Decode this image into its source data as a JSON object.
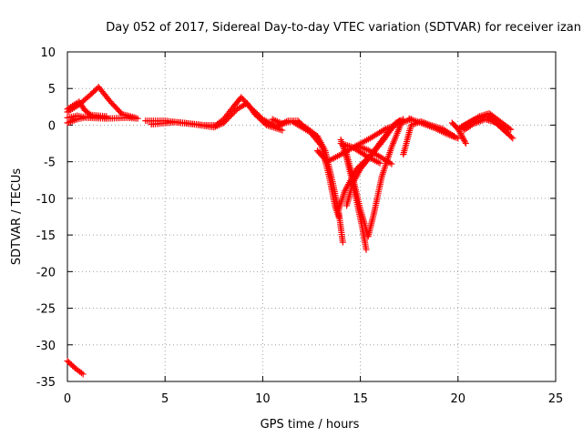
{
  "chart_data": {
    "type": "scatter",
    "title": "Day 052 of 2017, Sidereal Day-to-day VTEC variation (SDTVAR) for receiver izan",
    "xlabel": "GPS time / hours",
    "ylabel": "SDTVAR / TECUs",
    "xlim": [
      0,
      25
    ],
    "ylim": [
      -35,
      10
    ],
    "xticks": [
      0,
      5,
      10,
      15,
      20,
      25
    ],
    "yticks": [
      10,
      5,
      0,
      -5,
      -10,
      -15,
      -20,
      -25,
      -30,
      -35
    ],
    "grid": true,
    "marker": "+",
    "series": [
      {
        "name": "SDTVAR",
        "color": "#ff0000",
        "tracks": [
          [
            [
              0.0,
              -32.2
            ],
            [
              0.4,
              -33.2
            ],
            [
              0.8,
              -34.0
            ]
          ],
          [
            [
              0.0,
              1.0
            ],
            [
              0.5,
              1.3
            ],
            [
              1.0,
              1.0
            ],
            [
              2.0,
              0.9
            ],
            [
              3.0,
              1.0
            ],
            [
              3.6,
              0.9
            ]
          ],
          [
            [
              0.0,
              1.8
            ],
            [
              0.6,
              2.8
            ],
            [
              1.2,
              4.2
            ],
            [
              1.6,
              5.2
            ],
            [
              2.2,
              3.2
            ],
            [
              2.8,
              1.5
            ],
            [
              3.5,
              1.0
            ]
          ],
          [
            [
              0.0,
              2.2
            ],
            [
              0.6,
              3.2
            ],
            [
              0.9,
              2.0
            ],
            [
              1.2,
              1.4
            ],
            [
              2.0,
              1.2
            ]
          ],
          [
            [
              0.0,
              0.3
            ],
            [
              0.5,
              0.8
            ],
            [
              1.2,
              1.2
            ],
            [
              2.0,
              1.0
            ]
          ],
          [
            [
              4.0,
              0.6
            ],
            [
              5.0,
              0.6
            ],
            [
              6.0,
              0.3
            ],
            [
              7.0,
              0.0
            ],
            [
              7.6,
              0.0
            ],
            [
              8.0,
              0.8
            ],
            [
              8.5,
              2.5
            ],
            [
              8.9,
              3.8
            ],
            [
              9.3,
              2.6
            ],
            [
              10.0,
              0.8
            ],
            [
              10.7,
              -0.2
            ],
            [
              11.3,
              0.6
            ],
            [
              11.8,
              0.6
            ],
            [
              12.2,
              -0.4
            ]
          ],
          [
            [
              4.3,
              0.1
            ],
            [
              5.5,
              0.4
            ],
            [
              6.5,
              0.1
            ],
            [
              7.5,
              -0.3
            ],
            [
              8.0,
              0.3
            ],
            [
              8.7,
              2.2
            ],
            [
              9.2,
              3.0
            ],
            [
              9.6,
              1.5
            ],
            [
              10.2,
              0.0
            ],
            [
              11.0,
              -0.7
            ]
          ],
          [
            [
              10.5,
              0.8
            ],
            [
              11.0,
              0.2
            ],
            [
              11.5,
              0.5
            ],
            [
              12.2,
              -0.6
            ],
            [
              12.7,
              -1.4
            ]
          ],
          [
            [
              12.2,
              -0.3
            ],
            [
              12.8,
              -1.5
            ],
            [
              13.2,
              -3.5
            ],
            [
              13.6,
              -8.0
            ],
            [
              13.9,
              -12.0
            ],
            [
              14.1,
              -16.0
            ]
          ],
          [
            [
              12.5,
              -1.2
            ],
            [
              13.0,
              -2.8
            ],
            [
              13.4,
              -7.0
            ],
            [
              13.7,
              -11.0
            ],
            [
              13.9,
              -12.6
            ]
          ],
          [
            [
              14.0,
              -2.0
            ],
            [
              14.3,
              -4.5
            ],
            [
              14.7,
              -9.0
            ],
            [
              15.1,
              -14.0
            ],
            [
              15.3,
              -17.0
            ]
          ],
          [
            [
              14.2,
              -3.0
            ],
            [
              14.6,
              -7.0
            ],
            [
              15.0,
              -11.5
            ],
            [
              15.4,
              -15.2
            ],
            [
              15.7,
              -12.0
            ],
            [
              16.1,
              -7.0
            ],
            [
              16.6,
              -3.0
            ],
            [
              17.1,
              0.3
            ],
            [
              17.6,
              0.8
            ]
          ],
          [
            [
              14.3,
              -11.0
            ],
            [
              14.6,
              -8.0
            ],
            [
              15.0,
              -6.0
            ],
            [
              15.6,
              -4.0
            ],
            [
              16.2,
              -2.0
            ],
            [
              16.8,
              0.3
            ],
            [
              17.2,
              0.8
            ]
          ],
          [
            [
              13.9,
              -11.5
            ],
            [
              14.2,
              -9.0
            ],
            [
              14.8,
              -6.0
            ],
            [
              15.5,
              -4.2
            ],
            [
              16.4,
              -1.0
            ],
            [
              17.0,
              0.6
            ]
          ],
          [
            [
              12.8,
              -3.5
            ],
            [
              13.3,
              -5.0
            ],
            [
              14.0,
              -4.0
            ],
            [
              14.8,
              -2.8
            ],
            [
              15.5,
              -1.8
            ],
            [
              16.3,
              -0.5
            ],
            [
              17.0,
              0.2
            ]
          ],
          [
            [
              14.8,
              -2.8
            ],
            [
              15.4,
              -3.4
            ],
            [
              16.0,
              -4.3
            ],
            [
              16.6,
              -5.3
            ]
          ],
          [
            [
              14.0,
              -2.5
            ],
            [
              14.6,
              -3.0
            ],
            [
              15.3,
              -4.2
            ],
            [
              16.0,
              -5.2
            ]
          ],
          [
            [
              17.2,
              -4.0
            ],
            [
              17.4,
              -2.0
            ],
            [
              17.6,
              0.0
            ],
            [
              18.1,
              0.5
            ],
            [
              18.6,
              0.0
            ],
            [
              19.2,
              -0.5
            ],
            [
              19.8,
              -1.5
            ]
          ],
          [
            [
              17.5,
              0.9
            ],
            [
              18.2,
              0.2
            ],
            [
              18.8,
              -0.4
            ],
            [
              19.5,
              -1.3
            ],
            [
              20.0,
              -1.8
            ]
          ],
          [
            [
              19.7,
              0.3
            ],
            [
              20.0,
              -0.5
            ],
            [
              20.2,
              -1.5
            ],
            [
              20.4,
              -2.5
            ]
          ],
          [
            [
              20.0,
              -0.5
            ],
            [
              20.6,
              0.4
            ],
            [
              21.1,
              1.2
            ],
            [
              21.6,
              1.6
            ],
            [
              22.1,
              0.6
            ],
            [
              22.7,
              -0.6
            ]
          ],
          [
            [
              20.3,
              -0.7
            ],
            [
              20.8,
              0.2
            ],
            [
              21.4,
              0.8
            ],
            [
              21.9,
              0.4
            ],
            [
              22.4,
              -0.8
            ],
            [
              22.8,
              -1.8
            ]
          ],
          [
            [
              20.2,
              -0.2
            ],
            [
              20.8,
              0.7
            ],
            [
              21.5,
              1.2
            ],
            [
              22.0,
              0.2
            ],
            [
              22.5,
              -1.0
            ]
          ]
        ]
      }
    ]
  }
}
